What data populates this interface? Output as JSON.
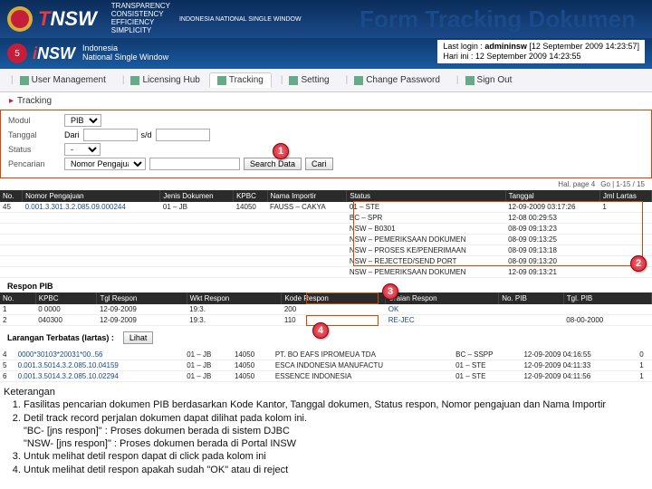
{
  "title": "Form Tracking Dokumen",
  "topbar": {
    "brand1": "T",
    "brand2": "NSW",
    "sub1": "TRANSPARENCY",
    "sub2": "CONSISTENCY",
    "sub3": "EFFICIENCY",
    "sub4": "SIMPLICITY",
    "subfull": "INDONESIA NATIONAL SINGLE WINDOW"
  },
  "subhead": {
    "badge": "5",
    "brand1": "i",
    "brand2": "NSW",
    "sub1": "Indonesia",
    "sub2": "National Single Window",
    "login_label": "Last login : ",
    "login_user": "admininsw",
    "login_time": " [12 September 2009 14:23:57]",
    "now_label": "Hari ini : ",
    "now_time": "12 September 2009 14:23:55"
  },
  "navtabs": [
    {
      "label": "User Management"
    },
    {
      "label": "Licensing Hub"
    },
    {
      "label": "Tracking",
      "active": true
    },
    {
      "label": "Setting"
    },
    {
      "label": "Change Password"
    },
    {
      "label": "Sign Out"
    }
  ],
  "subnav": {
    "label": "Tracking"
  },
  "filters": {
    "row1_label": "Modul",
    "row1_val": "PIB",
    "row2_label": "Tanggal",
    "row2_from_lbl": "Dari",
    "row2_from": "",
    "row2_to_lbl": "s/d",
    "row2_to": "",
    "row3_label": "Status",
    "row3_val": "-",
    "row4_label": "Pencarian",
    "row4_sel": "Nomor Pengajuan",
    "row4_val": "",
    "btn_search": "Search Data",
    "btn_cari": "Cari"
  },
  "marker1": "1",
  "marker2": "2",
  "marker3": "3",
  "marker4": "4",
  "pager": {
    "left": "Hal. page 4",
    "right": "Go | 1-15 / 15"
  },
  "grid1": {
    "cols": [
      "No.",
      "Nomor Pengajuan",
      "Jenis Dokumen",
      "KPBC",
      "Nama Importir",
      "Status",
      "Tanggal",
      "Jml Lartas"
    ],
    "rows": [
      [
        "45",
        "0.001.3.301.3.2.085.09.000244",
        "01 – JB",
        "14050",
        "FAUSS – CAKYA",
        "01 – STE",
        "12-09-2009 03:17:26",
        "1"
      ]
    ],
    "statusdetail": [
      "BC – SPR",
      "NSW – B0301",
      "NSW – PEMERIKSAAN DOKUMEN",
      "NSW – PROSES KE/PENERIMAAN",
      "NSW – REJECTED/SEND PORT",
      "NSW – PEMERIKSAAN DOKUMEN"
    ],
    "statusdates": [
      "12-08 00:29:53",
      "08-09 09:13:23",
      "08-09 09:13:25",
      "08-09 09:13:18",
      "08-09 09:13:20",
      "12-09 09:13:21"
    ]
  },
  "respon_title": "Respon PIB",
  "grid2": {
    "cols": [
      "No.",
      "KPBC",
      "Tgl Respon",
      "Wkt Respon",
      "Kode Respon",
      "Uraian Respon",
      "No. PIB",
      "Tgl. PIB"
    ],
    "rows": [
      [
        "1",
        "0 0000",
        "12-09-2009",
        "19:3.",
        "200",
        "OK",
        "",
        ""
      ],
      [
        "2",
        "040300",
        "12-09-2009",
        "19:3.",
        "110",
        "RE-JEC",
        "",
        "08-00-2000"
      ]
    ]
  },
  "larangan": {
    "label": "Larangan Terbatas (lartas) :",
    "btn": "Lihat"
  },
  "grid3": {
    "rows": [
      [
        "4",
        "0000*30103*20031*00..56",
        "01 – JB",
        "14050",
        "PT. BO EAFS IPROMEUA TDA",
        "BC – SSPP",
        "12-09-2009 04:16:55",
        "0"
      ],
      [
        "5",
        "0.001.3.5014.3.2.085.10.04159",
        "01 – JB",
        "14050",
        "ESCA INDONESIA MANUFACTU",
        "01 – STE",
        "12-09-2009 04:11:33",
        "1"
      ],
      [
        "6",
        "0.001.3.5014.3.2.085.10.02294",
        "01 – JB",
        "14050",
        "ESSENCE INDONESIA",
        "01 – STE",
        "12-09-2009 04:11:56",
        "1"
      ]
    ]
  },
  "ket": {
    "title": "Keterangan",
    "items": [
      "Fasilitas pencarian dokumen PIB berdasarkan Kode Kantor, Tanggal dokumen, Status respon, Nomor pengajuan dan Nama Importir",
      "Detil track record perjalan dokumen dapat dilihat pada kolom ini.\n\"BC- [jns respon]\" : Proses dokumen berada di sistem DJBC\n\"NSW- [jns respon]\"  : Proses dokumen berada di Portal INSW",
      "Untuk melihat detil respon dapat di click pada kolom ini",
      "Untuk melihat detil respon apakah sudah \"OK\" atau di reject"
    ]
  }
}
